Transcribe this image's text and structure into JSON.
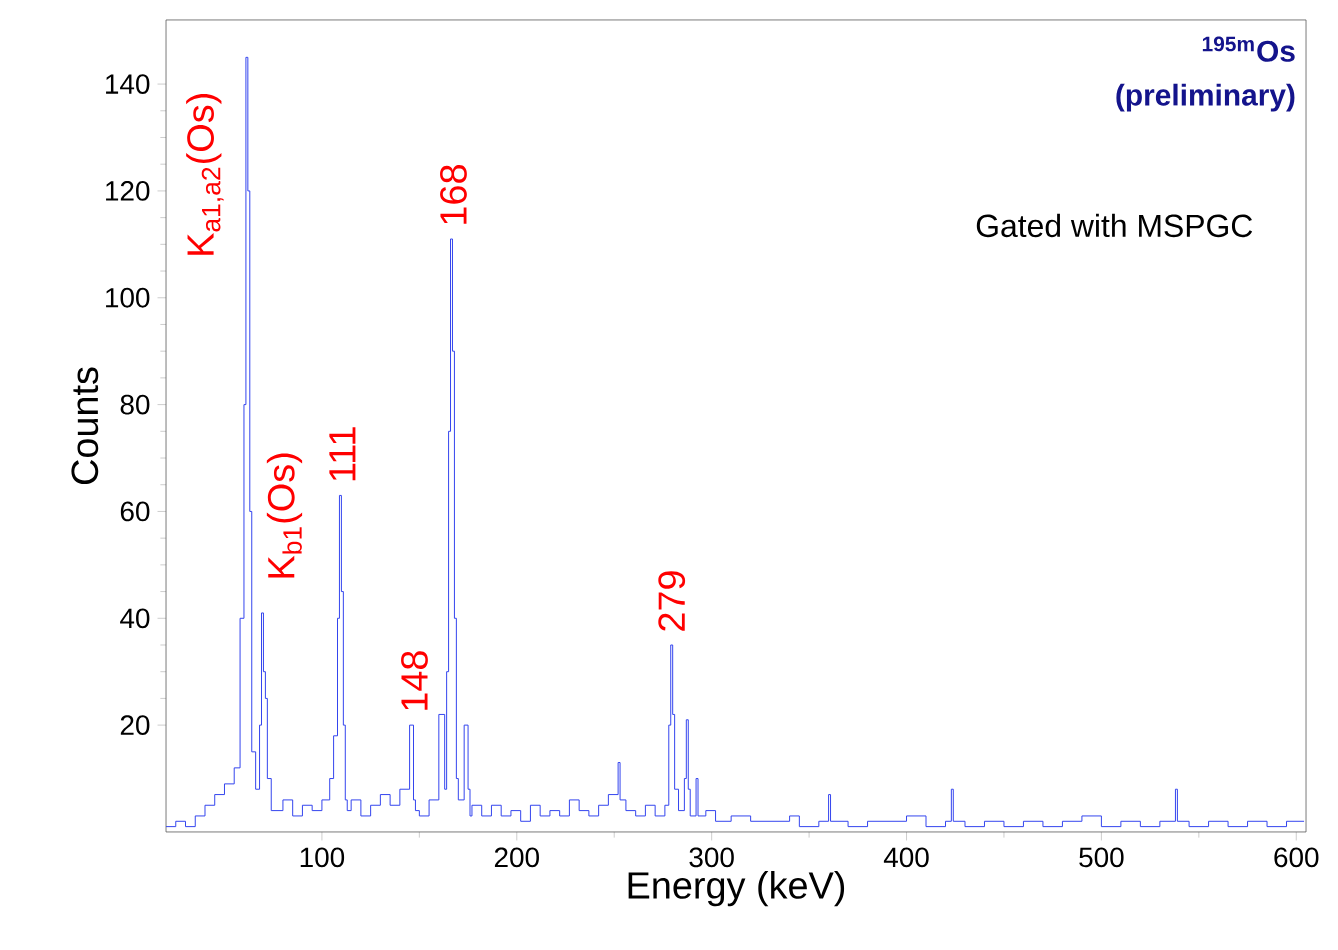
{
  "chart_data": {
    "type": "histogram",
    "title": "$^{195m}$Os (preliminary)",
    "subtitle": "Gated with MSPGC",
    "xlabel": "Energy (keV)",
    "ylabel": "Counts",
    "color": "#3344ee",
    "bins": [
      20,
      25,
      30,
      35,
      40,
      45,
      50,
      55,
      58,
      60,
      61,
      62,
      63,
      64,
      66,
      68,
      69,
      70,
      71,
      72,
      74,
      80,
      85,
      90,
      95,
      100,
      104,
      106,
      108,
      109,
      110,
      111,
      112,
      113,
      115,
      120,
      125,
      130,
      135,
      140,
      145,
      147,
      148,
      150,
      155,
      160,
      163,
      164,
      165,
      166,
      167,
      168,
      169,
      170,
      173,
      175,
      176,
      177,
      182,
      187,
      192,
      197,
      202,
      207,
      212,
      217,
      222,
      227,
      232,
      237,
      242,
      247,
      252,
      253,
      256,
      261,
      266,
      271,
      276,
      278,
      279,
      280,
      281,
      283,
      286,
      287,
      288,
      289,
      292,
      293,
      297,
      302,
      310,
      320,
      330,
      340,
      345,
      355,
      360,
      361,
      370,
      380,
      390,
      400,
      410,
      420,
      423,
      424,
      430,
      440,
      450,
      460,
      470,
      480,
      490,
      500,
      510,
      520,
      530,
      538,
      539,
      545,
      555,
      565,
      575,
      585,
      595,
      604
    ],
    "values": [
      1,
      2,
      1,
      3,
      5,
      7,
      9,
      12,
      40,
      80,
      145,
      120,
      60,
      15,
      8,
      20,
      41,
      30,
      25,
      10,
      4,
      6,
      3,
      5,
      4,
      6,
      10,
      18,
      40,
      63,
      45,
      20,
      6,
      4,
      6,
      3,
      5,
      7,
      5,
      8,
      20,
      6,
      4,
      3,
      6,
      22,
      8,
      30,
      75,
      111,
      90,
      40,
      10,
      6,
      20,
      8,
      3,
      5,
      3,
      5,
      3,
      4,
      2,
      5,
      3,
      4,
      3,
      6,
      4,
      3,
      5,
      7,
      13,
      6,
      4,
      3,
      5,
      3,
      5,
      20,
      35,
      22,
      8,
      4,
      10,
      21,
      8,
      3,
      10,
      3,
      4,
      2,
      3,
      2,
      2,
      3,
      1,
      2,
      7,
      2,
      1,
      2,
      2,
      3,
      1,
      2,
      8,
      2,
      1,
      2,
      1,
      2,
      1,
      2,
      3,
      1,
      2,
      1,
      2,
      8,
      2,
      1,
      2,
      1,
      2,
      1,
      2
    ],
    "xlim": [
      20,
      605
    ],
    "ylim": [
      0,
      152
    ],
    "xticks": [
      100,
      200,
      300,
      400,
      500,
      600
    ],
    "yticks": [
      20,
      40,
      60,
      80,
      100,
      120,
      140
    ],
    "annotations": [
      {
        "text": "K$_{a1,a2}$(Os)",
        "x": 61.5,
        "y": 145
      },
      {
        "text": "K$_{b1}$(Os)",
        "x": 69.5,
        "y": 41
      },
      {
        "text": "111",
        "x": 110.5,
        "y": 63
      },
      {
        "text": "148",
        "x": 147.5,
        "y": 20
      },
      {
        "text": "168",
        "x": 167.5,
        "y": 111
      },
      {
        "text": "279",
        "x": 279.5,
        "y": 35
      }
    ]
  }
}
